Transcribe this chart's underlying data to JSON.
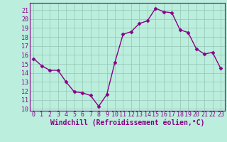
{
  "x": [
    0,
    1,
    2,
    3,
    4,
    5,
    6,
    7,
    8,
    9,
    10,
    11,
    12,
    13,
    14,
    15,
    16,
    17,
    18,
    19,
    20,
    21,
    22,
    23
  ],
  "y": [
    15.6,
    14.8,
    14.3,
    14.3,
    13.0,
    11.9,
    11.8,
    11.5,
    10.3,
    11.6,
    15.2,
    18.3,
    18.6,
    19.5,
    19.8,
    21.2,
    20.8,
    20.7,
    18.8,
    18.5,
    16.7,
    16.1,
    16.3,
    14.5
  ],
  "line_color": "#880088",
  "marker": "D",
  "marker_size": 2.5,
  "xlabel": "Windchill (Refroidissement éolien,°C)",
  "xlabel_fontsize": 7,
  "ylim": [
    9.8,
    21.8
  ],
  "xlim": [
    -0.5,
    23.5
  ],
  "yticks": [
    10,
    11,
    12,
    13,
    14,
    15,
    16,
    17,
    18,
    19,
    20,
    21
  ],
  "xticks": [
    0,
    1,
    2,
    3,
    4,
    5,
    6,
    7,
    8,
    9,
    10,
    11,
    12,
    13,
    14,
    15,
    16,
    17,
    18,
    19,
    20,
    21,
    22,
    23
  ],
  "background_color": "#bbeedd",
  "grid_color": "#99ccbb",
  "tick_fontsize": 6,
  "line_width": 1.0
}
